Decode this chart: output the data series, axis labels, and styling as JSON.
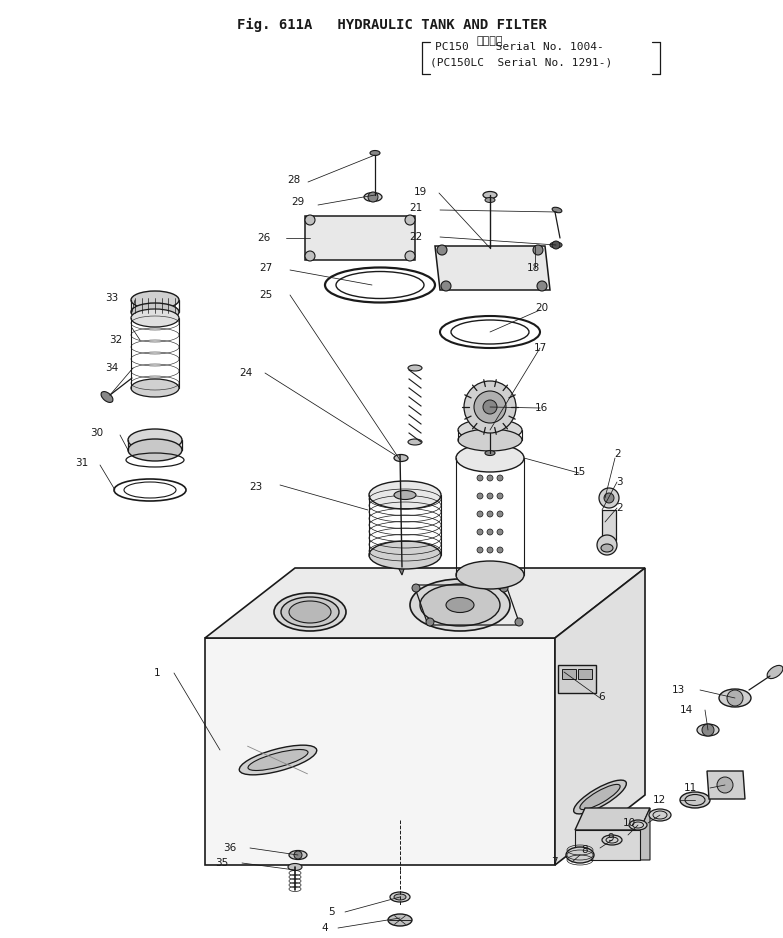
{
  "title_line1": "Fig. 611A   HYDRAULIC TANK AND FILTER",
  "title_line2": "適用号機",
  "title_line3": "PC150    Serial No. 1004-",
  "title_line4": "(PC150LC  Serial No. 1291-)",
  "bg_color": "#ffffff",
  "line_color": "#1a1a1a",
  "figsize": [
    7.83,
    9.38
  ],
  "dpi": 100
}
